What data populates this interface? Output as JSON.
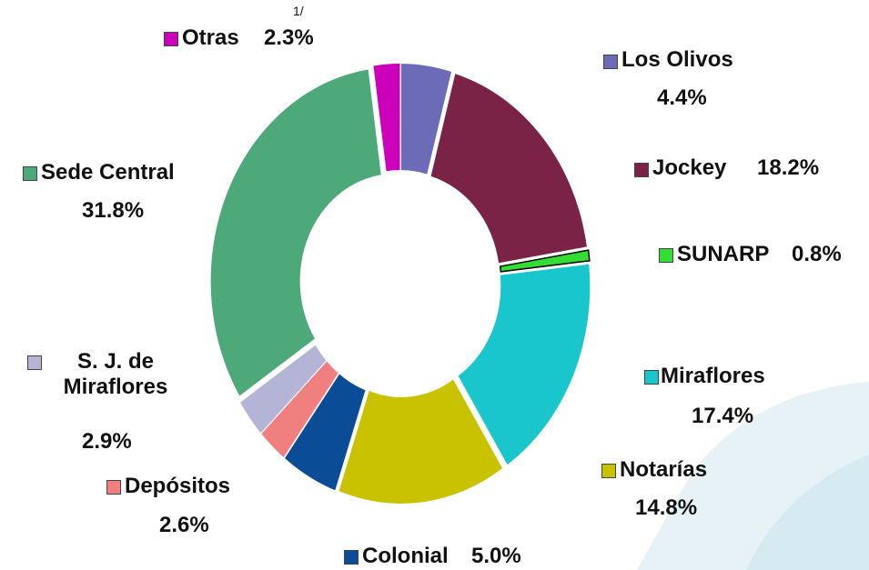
{
  "chart_data": {
    "type": "pie",
    "donut": true,
    "categories": [
      "Los Olivos",
      "Jockey",
      "SUNARP",
      "Miraflores",
      "Notarías",
      "Colonial",
      "Depósitos",
      "S. J. de Miraflores",
      "Sede Central",
      "Otras"
    ],
    "values": [
      4.4,
      18.2,
      0.8,
      17.4,
      14.8,
      5.0,
      2.6,
      2.9,
      31.8,
      2.3
    ],
    "value_labels": [
      "4.4%",
      "18.2%",
      "0.8%",
      "17.4%",
      "14.8%",
      "5.0%",
      "2.6%",
      "2.9%",
      "31.8%",
      "2.3%"
    ],
    "colors": [
      "#6b6bb8",
      "#7a2347",
      "#33dd33",
      "#19c6cc",
      "#c9c200",
      "#0b4c97",
      "#f08080",
      "#b4b4d6",
      "#4da87a",
      "#cc00bb"
    ],
    "annotation": "1/"
  }
}
